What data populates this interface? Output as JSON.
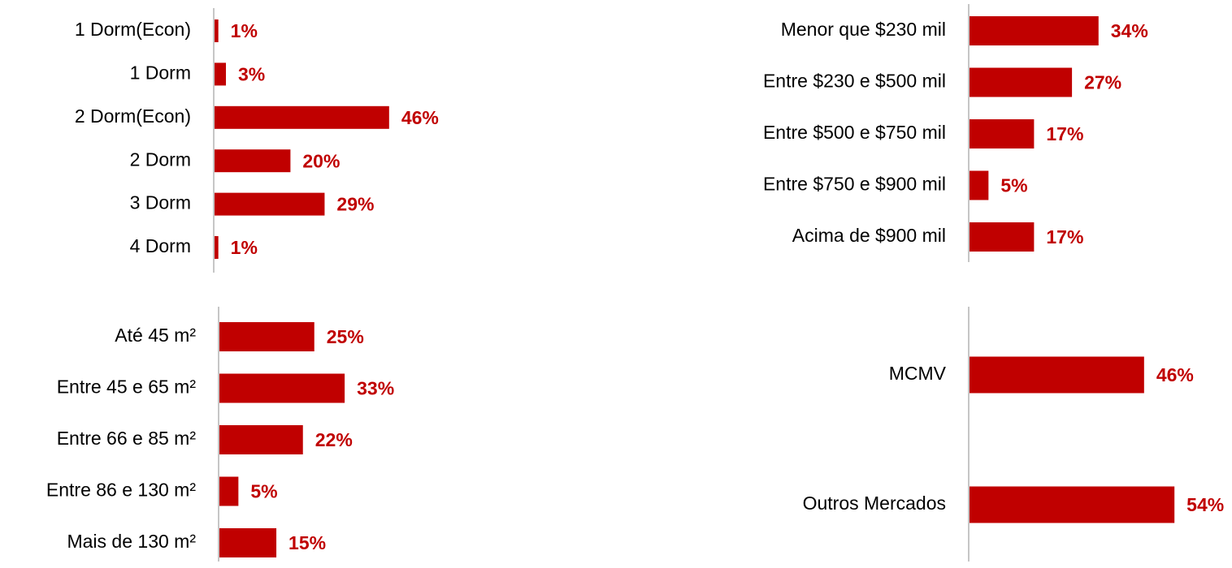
{
  "chart_data": [
    {
      "type": "barh",
      "color": "#c00000",
      "categories": [
        "1 Dorm(Econ)",
        "1 Dorm",
        "2 Dorm(Econ)",
        "2 Dorm",
        "3 Dorm",
        "4 Dorm"
      ],
      "values": [
        1,
        3,
        46,
        20,
        29,
        1
      ],
      "value_labels": [
        "1%",
        "3%",
        "46%",
        "20%",
        "29%",
        "1%"
      ]
    },
    {
      "type": "barh",
      "color": "#c00000",
      "categories": [
        "Menor que $230 mil",
        "Entre $230 e $500 mil",
        "Entre $500 e $750 mil",
        "Entre $750 e $900 mil",
        "Acima de $900 mil"
      ],
      "values": [
        34,
        27,
        17,
        5,
        17
      ],
      "value_labels": [
        "34%",
        "27%",
        "17%",
        "5%",
        "17%"
      ]
    },
    {
      "type": "barh",
      "color": "#c00000",
      "categories": [
        "Até 45 m²",
        "Entre 45 e 65 m²",
        "Entre 66 e 85 m²",
        "Entre 86 e 130 m²",
        "Mais de 130 m²"
      ],
      "values": [
        25,
        33,
        22,
        5,
        15
      ],
      "value_labels": [
        "25%",
        "33%",
        "22%",
        "5%",
        "15%"
      ]
    },
    {
      "type": "barh",
      "color": "#c00000",
      "categories": [
        "MCMV",
        "Outros Mercados"
      ],
      "values": [
        46,
        54
      ],
      "value_labels": [
        "46%",
        "54%"
      ]
    }
  ]
}
